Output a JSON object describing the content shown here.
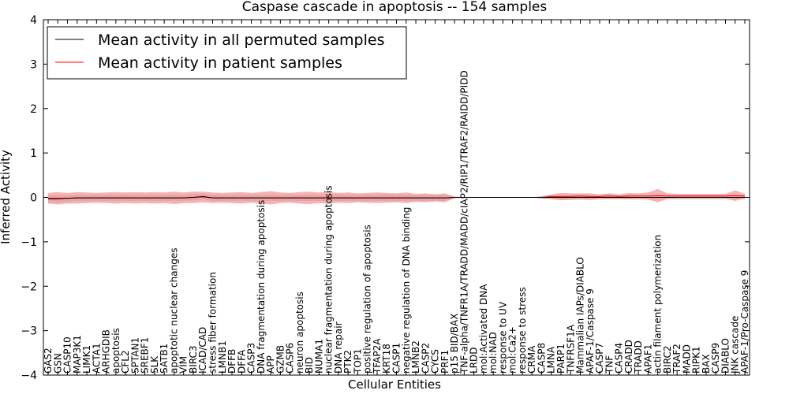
{
  "chart_data": {
    "type": "line",
    "title": "Caspase cascade in apoptosis -- 154 samples",
    "xlabel": "Cellular Entities",
    "ylabel": "Inferred Activity",
    "ylim": [
      -4,
      4
    ],
    "yticks": [
      4,
      3,
      2,
      1,
      0,
      -1,
      -2,
      -3,
      -4
    ],
    "ytick_labels": [
      "4",
      "3",
      "2",
      "1",
      "0",
      "−1",
      "−2",
      "−3",
      "−4"
    ],
    "grid": false,
    "legend_position": "top-left",
    "categories": [
      "GAS2",
      "GSN",
      "CASP10",
      "MAP3K1",
      "LIMK1",
      "ACTA1",
      "ARHGDIB",
      "apoptosis",
      "CFL2",
      "SPTAN1",
      "SREBF1",
      "SLK",
      "SATB1",
      "apoptotic nuclear changes",
      "VIM",
      "BIRC3",
      "ICAD/CAD",
      "stress fiber formation",
      "LMNB1",
      "DFFB",
      "DFFA",
      "CASP3",
      "DNA fragmentation during apoptosis",
      "APP",
      "GZMB",
      "CASP6",
      "neuron apoptosis",
      "BID",
      "NUMA1",
      "nuclear fragmentation during apoptosis",
      "DNA repair",
      "PTK2",
      "TOP1",
      "positive regulation of apoptosis",
      "TFAP2A",
      "KRT18",
      "CASP1",
      "negative regulation of DNA binding",
      "LMNB2",
      "CASP2",
      "CYCS",
      "PRF1",
      "p15 BID/BAX",
      "TNF-alpha/TNFR1A/TRADD/MADD/cIAP2/RIP1/TRAF2/RAIDD/PIDD",
      "LRDD",
      "mol:Activated DNA",
      "mol:NAD",
      "response to UV",
      "mol:Ca2+",
      "response to stress",
      "CRMA",
      "CASP8",
      "LMNA",
      "PARP1",
      "TNFRSF1A",
      "Mammalian IAPs/DIABLO",
      "APAF-1/Caspase 9",
      "CASP7",
      "TNF",
      "CASP4",
      "CRADD",
      "TRADD",
      "APAF1",
      "actin filament polymerization",
      "BIRC2",
      "TRAF2",
      "MADD",
      "RIPK1",
      "BAX",
      "CASP9",
      "DIABLO",
      "JNK cascade",
      "APAF-1/Pro-Caspase 9"
    ],
    "series": [
      {
        "name": "Mean activity in all permuted samples",
        "color": "#000000",
        "band_color": "#b0b0b0",
        "values": [
          -0.03,
          -0.03,
          -0.02,
          -0.01,
          -0.01,
          -0.01,
          -0.01,
          -0.01,
          -0.01,
          -0.01,
          -0.01,
          -0.01,
          -0.01,
          -0.01,
          -0.01,
          0.0,
          0.02,
          -0.01,
          -0.01,
          -0.01,
          -0.01,
          -0.01,
          -0.01,
          -0.01,
          -0.01,
          -0.01,
          -0.01,
          -0.01,
          -0.01,
          -0.01,
          -0.01,
          -0.01,
          -0.01,
          -0.01,
          -0.01,
          -0.01,
          -0.01,
          -0.01,
          -0.01,
          -0.01,
          -0.01,
          -0.01,
          0.0,
          0.0,
          0.0,
          0.0,
          0.0,
          0.0,
          0.0,
          0.0,
          0.0,
          0.0,
          0.0,
          0.0,
          0.0,
          0.0,
          0.0,
          0.0,
          0.0,
          0.0,
          0.0,
          0.0,
          0.0,
          0.0,
          0.0,
          0.0,
          0.0,
          0.0,
          0.0,
          0.0,
          0.0,
          0.0,
          0.0
        ],
        "spread": [
          0.08,
          0.08,
          0.07,
          0.07,
          0.07,
          0.07,
          0.07,
          0.07,
          0.07,
          0.07,
          0.07,
          0.07,
          0.07,
          0.07,
          0.07,
          0.07,
          0.07,
          0.07,
          0.07,
          0.07,
          0.07,
          0.07,
          0.07,
          0.07,
          0.07,
          0.07,
          0.07,
          0.07,
          0.07,
          0.07,
          0.07,
          0.07,
          0.07,
          0.07,
          0.07,
          0.07,
          0.07,
          0.07,
          0.07,
          0.07,
          0.07,
          0.07,
          0.01,
          0.0,
          0.0,
          0.0,
          0.0,
          0.0,
          0.0,
          0.0,
          0.0,
          0.03,
          0.05,
          0.06,
          0.06,
          0.06,
          0.06,
          0.05,
          0.05,
          0.05,
          0.05,
          0.05,
          0.05,
          0.05,
          0.05,
          0.05,
          0.05,
          0.05,
          0.05,
          0.05,
          0.05,
          0.05,
          0.05
        ]
      },
      {
        "name": "Mean activity in patient samples",
        "color": "#ff0000",
        "band_color": "#f28080",
        "values": [
          -0.02,
          -0.02,
          -0.02,
          -0.01,
          -0.01,
          -0.01,
          -0.01,
          -0.01,
          -0.01,
          -0.01,
          -0.01,
          -0.01,
          -0.01,
          -0.01,
          -0.01,
          0.0,
          0.01,
          -0.01,
          -0.01,
          -0.01,
          -0.01,
          -0.01,
          -0.01,
          -0.01,
          -0.01,
          -0.01,
          -0.01,
          -0.01,
          -0.01,
          -0.01,
          -0.01,
          -0.01,
          -0.01,
          -0.01,
          -0.01,
          -0.01,
          -0.01,
          -0.01,
          -0.01,
          -0.01,
          -0.01,
          -0.01,
          0.0,
          0.0,
          0.0,
          0.0,
          0.0,
          0.0,
          0.0,
          0.0,
          0.0,
          0.0,
          0.02,
          0.02,
          0.02,
          0.03,
          0.02,
          0.02,
          0.03,
          0.02,
          0.03,
          0.03,
          0.03,
          0.04,
          0.03,
          0.03,
          0.03,
          0.03,
          0.03,
          0.03,
          0.03,
          0.04,
          0.03
        ],
        "spread": [
          0.12,
          0.14,
          0.12,
          0.13,
          0.12,
          0.11,
          0.12,
          0.13,
          0.12,
          0.13,
          0.12,
          0.13,
          0.12,
          0.14,
          0.12,
          0.13,
          0.12,
          0.12,
          0.11,
          0.12,
          0.13,
          0.11,
          0.13,
          0.15,
          0.12,
          0.11,
          0.13,
          0.14,
          0.12,
          0.13,
          0.11,
          0.12,
          0.1,
          0.11,
          0.12,
          0.11,
          0.1,
          0.12,
          0.09,
          0.1,
          0.08,
          0.1,
          0.02,
          0.0,
          0.0,
          0.0,
          0.0,
          0.0,
          0.0,
          0.0,
          0.0,
          0.02,
          0.05,
          0.08,
          0.07,
          0.06,
          0.07,
          0.05,
          0.06,
          0.05,
          0.07,
          0.06,
          0.08,
          0.15,
          0.06,
          0.05,
          0.05,
          0.05,
          0.05,
          0.05,
          0.05,
          0.12,
          0.05
        ]
      }
    ]
  }
}
